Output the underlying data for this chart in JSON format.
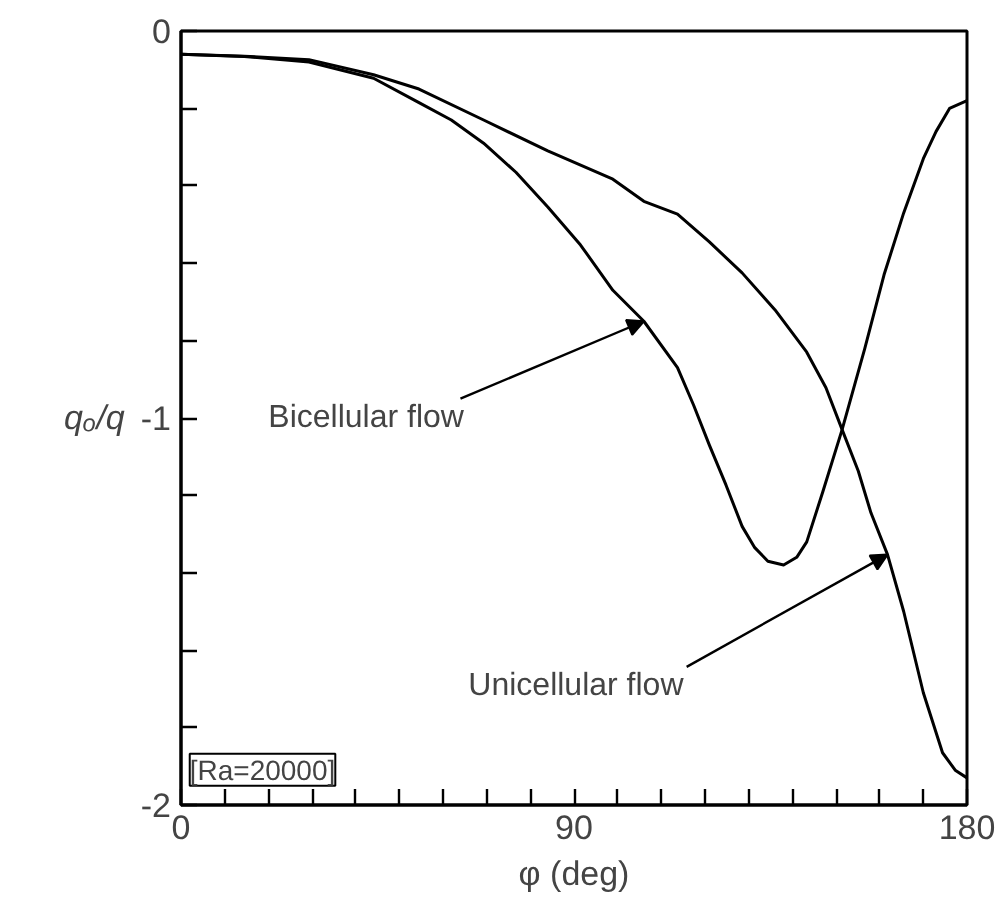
{
  "chart_data": {
    "type": "line",
    "xlabel": "φ (deg)",
    "ylabel": "qₒ/q",
    "xlim": [
      0,
      180
    ],
    "ylim": [
      -2,
      0
    ],
    "xticks": [
      0,
      {
        "value": 10,
        "label": null
      },
      {
        "value": 20,
        "label": null
      },
      {
        "value": 30,
        "label": null
      },
      {
        "value": 40,
        "label": null
      },
      {
        "value": 50,
        "label": null
      },
      {
        "value": 60,
        "label": null
      },
      {
        "value": 70,
        "label": null
      },
      {
        "value": 80,
        "label": null
      },
      90,
      {
        "value": 100,
        "label": null
      },
      {
        "value": 110,
        "label": null
      },
      {
        "value": 120,
        "label": null
      },
      {
        "value": 130,
        "label": null
      },
      {
        "value": 140,
        "label": null
      },
      {
        "value": 150,
        "label": null
      },
      {
        "value": 160,
        "label": null
      },
      {
        "value": 170,
        "label": null
      },
      180
    ],
    "yticks": [
      -2,
      {
        "value": -1.8,
        "label": null
      },
      {
        "value": -1.6,
        "label": null
      },
      {
        "value": -1.4,
        "label": null
      },
      {
        "value": -1.2,
        "label": null
      },
      -1,
      {
        "value": -0.8,
        "label": null
      },
      {
        "value": -0.6,
        "label": null
      },
      {
        "value": -0.4,
        "label": null
      },
      {
        "value": -0.2,
        "label": null
      },
      0
    ],
    "grid": false,
    "line_style": "solid",
    "marker": "none",
    "series": [
      {
        "color": "#000000",
        "x": [
          0,
          14.5,
          29.3,
          44.1,
          54.5,
          61.9,
          69.3,
          76.7,
          84,
          91.5,
          98.9,
          106,
          113.7,
          117.4,
          121,
          124.8,
          128.5,
          131.4,
          134.4,
          138,
          141,
          143.3,
          147,
          151.4,
          156.6,
          161,
          165.5,
          170,
          172.9,
          176,
          180
        ],
        "values": [
          -0.06,
          -0.066,
          -0.08,
          -0.122,
          -0.185,
          -0.23,
          -0.29,
          -0.365,
          -0.455,
          -0.553,
          -0.67,
          -0.75,
          -0.87,
          -0.967,
          -1.07,
          -1.173,
          -1.28,
          -1.335,
          -1.37,
          -1.38,
          -1.36,
          -1.32,
          -1.19,
          -1.03,
          -0.82,
          -0.63,
          -0.47,
          -0.33,
          -0.26,
          -0.2,
          -0.18
        ]
      },
      {
        "color": "#000000",
        "x": [
          0,
          14.5,
          29.3,
          44.1,
          54.5,
          69.3,
          84,
          98.9,
          106,
          113.7,
          121,
          128.5,
          136,
          143.3,
          147.7,
          151.4,
          155.1,
          158,
          161.8,
          165.5,
          170,
          174.4,
          177.3,
          180
        ],
        "values": [
          -0.06,
          -0.065,
          -0.074,
          -0.113,
          -0.15,
          -0.23,
          -0.31,
          -0.383,
          -0.44,
          -0.473,
          -0.545,
          -0.625,
          -0.72,
          -0.83,
          -0.922,
          -1.03,
          -1.137,
          -1.245,
          -1.353,
          -1.5,
          -1.71,
          -1.865,
          -1.91,
          -1.93
        ]
      }
    ],
    "annotations": [
      {
        "text": "Bicellular flow",
        "x": 106,
        "y": -0.75
      },
      {
        "text": "Unicellular flow",
        "x": 161.8,
        "y": -1.353
      },
      "[Ra=20000]"
    ]
  }
}
